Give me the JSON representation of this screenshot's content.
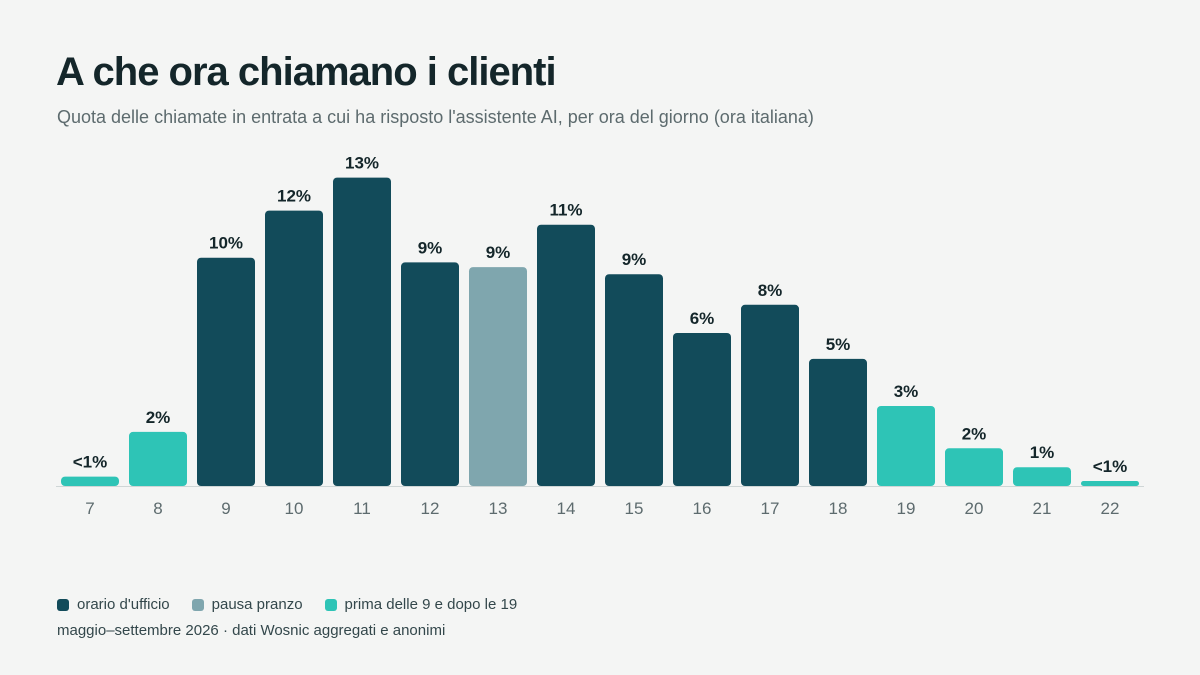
{
  "header": {
    "title": "A che ora chiamano i clienti",
    "subtitle": "Quota delle chiamate in entrata a cui ha risposto l'assistente AI, per ora del giorno (ora italiana)"
  },
  "colors": {
    "office": "#124b5a",
    "lunch": "#7fa6ae",
    "offhours": "#2ec4b6",
    "label": "#14262a",
    "tick": "#5d6b6e",
    "baseline": "#cfd6d6"
  },
  "legend": [
    {
      "label": "orario d'ufficio",
      "group": "office"
    },
    {
      "label": "pausa pranzo",
      "group": "lunch"
    },
    {
      "label": "prima delle 9 e dopo le 19",
      "group": "offhours"
    }
  ],
  "footer": {
    "source": "maggio–settembre 2026 · dati Wosnic aggregati e anonimi"
  },
  "chart_data": {
    "type": "bar",
    "title": "A che ora chiamano i clienti",
    "subtitle": "Quota delle chiamate in entrata a cui ha risposto l'assistente AI, per ora del giorno (ora italiana)",
    "xlabel": "",
    "ylabel": "",
    "ylim": [
      0,
      13
    ],
    "grid": false,
    "legend_position": "bottom-left",
    "categories": [
      "7",
      "8",
      "9",
      "10",
      "11",
      "12",
      "13",
      "14",
      "15",
      "16",
      "17",
      "18",
      "19",
      "20",
      "21",
      "22"
    ],
    "values": [
      0.4,
      2.3,
      9.7,
      11.7,
      13.1,
      9.5,
      9.3,
      11.1,
      9.0,
      6.5,
      7.7,
      5.4,
      3.4,
      1.6,
      0.8,
      0.2
    ],
    "labels": [
      "<1%",
      "2%",
      "10%",
      "12%",
      "13%",
      "9%",
      "9%",
      "11%",
      "9%",
      "6%",
      "8%",
      "5%",
      "3%",
      "2%",
      "1%",
      "<1%"
    ],
    "groups": [
      "offhours",
      "offhours",
      "office",
      "office",
      "office",
      "office",
      "lunch",
      "office",
      "office",
      "office",
      "office",
      "office",
      "offhours",
      "offhours",
      "offhours",
      "offhours"
    ]
  }
}
